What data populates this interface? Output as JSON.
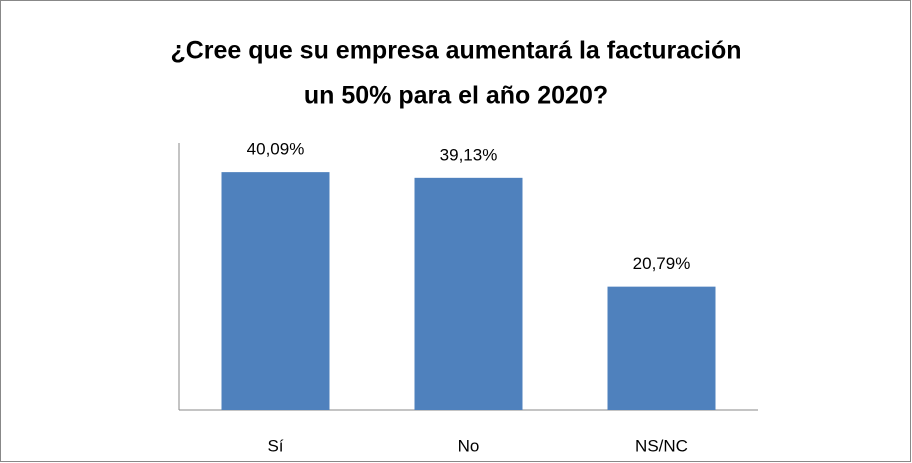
{
  "chart_data": {
    "type": "bar",
    "title": [
      "¿Cree que su empresa aumentará la facturación",
      "un 50% para el año 2020?"
    ],
    "categories": [
      "Sí",
      "No",
      "NS/NC"
    ],
    "values": [
      40.09,
      39.13,
      20.79
    ],
    "value_labels": [
      "40,09%",
      "39,13%",
      "20,79%"
    ],
    "color": "#4f81bd",
    "ylim": [
      0,
      45
    ]
  }
}
